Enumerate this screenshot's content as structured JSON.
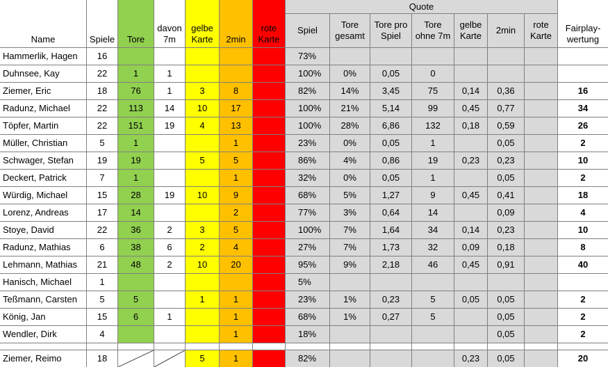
{
  "table": {
    "quote_group": "Quote",
    "columns": [
      "Name",
      "Spiele",
      "Tore",
      "davon\n7m",
      "gelbe\nKarte",
      "2min",
      "rote\nKarte",
      "Spiel",
      "Tore\ngesamt",
      "Tore pro\nSpiel",
      "Tore\nohne 7m",
      "gelbe\nKarte",
      "2min",
      "rote\nKarte",
      "Fairplay-\nwertung"
    ],
    "rows": [
      [
        "Hammerlik, Hagen",
        "16",
        null,
        null,
        null,
        null,
        null,
        "73%",
        null,
        null,
        null,
        null,
        null,
        null,
        null
      ],
      [
        "Duhnsee, Kay",
        "22",
        "1",
        "1",
        null,
        null,
        null,
        "100%",
        "0%",
        "0,05",
        "0",
        null,
        null,
        null,
        null
      ],
      [
        "Ziemer, Eric",
        "18",
        "76",
        "1",
        "3",
        "8",
        null,
        "82%",
        "14%",
        "3,45",
        "75",
        "0,14",
        "0,36",
        null,
        "16"
      ],
      [
        "Radunz, Michael",
        "22",
        "113",
        "14",
        "10",
        "17",
        null,
        "100%",
        "21%",
        "5,14",
        "99",
        "0,45",
        "0,77",
        null,
        "34"
      ],
      [
        "Töpfer, Martin",
        "22",
        "151",
        "19",
        "4",
        "13",
        null,
        "100%",
        "28%",
        "6,86",
        "132",
        "0,18",
        "0,59",
        null,
        "26"
      ],
      [
        "Müller, Christian",
        "5",
        "1",
        null,
        null,
        "1",
        null,
        "23%",
        "0%",
        "0,05",
        "1",
        null,
        "0,05",
        null,
        "2"
      ],
      [
        "Schwager, Stefan",
        "19",
        "19",
        null,
        "5",
        "5",
        null,
        "86%",
        "4%",
        "0,86",
        "19",
        "0,23",
        "0,23",
        null,
        "10"
      ],
      [
        "Deckert, Patrick",
        "7",
        "1",
        null,
        null,
        "1",
        null,
        "32%",
        "0%",
        "0,05",
        "1",
        null,
        "0,05",
        null,
        "2"
      ],
      [
        "Würdig, Michael",
        "15",
        "28",
        "19",
        "10",
        "9",
        null,
        "68%",
        "5%",
        "1,27",
        "9",
        "0,45",
        "0,41",
        null,
        "18"
      ],
      [
        "Lorenz, Andreas",
        "17",
        "14",
        null,
        null,
        "2",
        null,
        "77%",
        "3%",
        "0,64",
        "14",
        null,
        "0,09",
        null,
        "4"
      ],
      [
        "Stoye, David",
        "22",
        "36",
        "2",
        "3",
        "5",
        null,
        "100%",
        "7%",
        "1,64",
        "34",
        "0,14",
        "0,23",
        null,
        "10"
      ],
      [
        "Radunz, Mathias",
        "6",
        "38",
        "6",
        "2",
        "4",
        null,
        "27%",
        "7%",
        "1,73",
        "32",
        "0,09",
        "0,18",
        null,
        "8"
      ],
      [
        "Lehmann, Mathias",
        "21",
        "48",
        "2",
        "10",
        "20",
        null,
        "95%",
        "9%",
        "2,18",
        "46",
        "0,45",
        "0,91",
        null,
        "40"
      ],
      [
        "Hanisch, Michael",
        "1",
        null,
        null,
        null,
        null,
        null,
        "5%",
        null,
        null,
        null,
        null,
        null,
        null,
        null
      ],
      [
        "Teßmann, Carsten",
        "5",
        "5",
        null,
        "1",
        "1",
        null,
        "23%",
        "1%",
        "0,23",
        "5",
        "0,05",
        "0,05",
        null,
        "2"
      ],
      [
        "König, Jan",
        "15",
        "6",
        "1",
        null,
        "1",
        null,
        "68%",
        "1%",
        "0,27",
        "5",
        null,
        "0,05",
        null,
        "2"
      ],
      [
        "Wendler, Dirk",
        "4",
        null,
        null,
        null,
        "1",
        null,
        "18%",
        null,
        null,
        null,
        null,
        "0,05",
        null,
        "2"
      ]
    ],
    "extra_row": [
      "Ziemer, Reimo",
      "18",
      null,
      null,
      "5",
      "1",
      null,
      "82%",
      null,
      null,
      null,
      "0,23",
      "0,05",
      null,
      "20"
    ]
  }
}
